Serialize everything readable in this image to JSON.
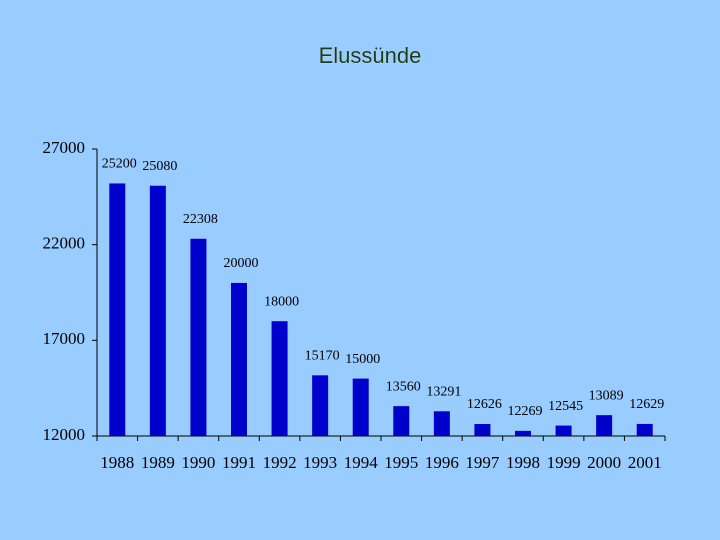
{
  "chart_data": {
    "type": "bar",
    "title": "Elussünde",
    "categories": [
      "1988",
      "1989",
      "1990",
      "1991",
      "1992",
      "1993",
      "1994",
      "1995",
      "1996",
      "1997",
      "1998",
      "1999",
      "2000",
      "2001"
    ],
    "values": [
      25200,
      25080,
      22308,
      20000,
      18000,
      15170,
      15000,
      13560,
      13291,
      12626,
      12269,
      12545,
      13089,
      12629
    ],
    "color": "#0000cc",
    "ylim": [
      12000,
      27000
    ],
    "yticks": [
      12000,
      17000,
      22000,
      27000
    ],
    "grid": false
  }
}
